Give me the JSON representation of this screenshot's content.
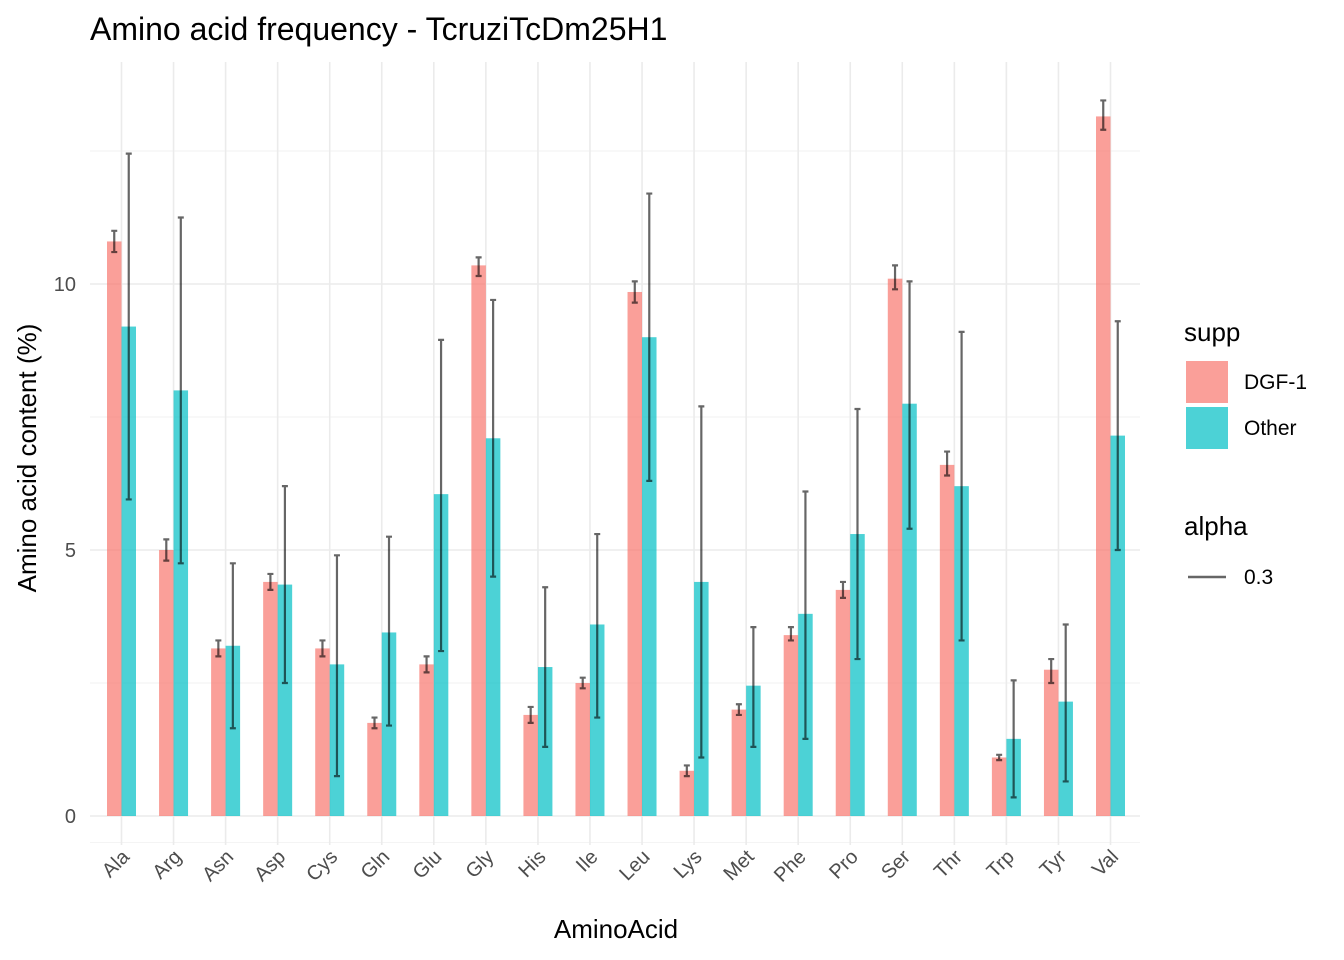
{
  "chart_data": {
    "type": "bar",
    "title": "Amino acid frequency - TcruziTcDm25H1",
    "xlabel": "AminoAcid",
    "ylabel": "Amino acid content (%)",
    "ylim": [
      -0.5,
      14.2
    ],
    "yticks": [
      0,
      5,
      10
    ],
    "grid": true,
    "legend_position": "right",
    "categories": [
      "Ala",
      "Arg",
      "Asn",
      "Asp",
      "Cys",
      "Gln",
      "Glu",
      "Gly",
      "His",
      "Ile",
      "Leu",
      "Lys",
      "Met",
      "Phe",
      "Pro",
      "Ser",
      "Thr",
      "Trp",
      "Tyr",
      "Val"
    ],
    "series": [
      {
        "name": "DGF-1",
        "color": "#F8766D",
        "values": [
          10.8,
          5.0,
          3.15,
          4.4,
          3.15,
          1.75,
          2.85,
          10.35,
          1.9,
          2.5,
          9.85,
          0.85,
          2.0,
          3.4,
          4.25,
          10.1,
          6.6,
          1.1,
          2.75,
          13.15
        ],
        "error_low": [
          10.6,
          4.8,
          3.0,
          4.25,
          3.0,
          1.65,
          2.7,
          10.15,
          1.75,
          2.4,
          9.65,
          0.75,
          1.9,
          3.3,
          4.1,
          9.9,
          6.4,
          1.05,
          2.5,
          12.9
        ],
        "error_high": [
          11.0,
          5.2,
          3.3,
          4.55,
          3.3,
          1.85,
          3.0,
          10.5,
          2.05,
          2.6,
          10.05,
          0.95,
          2.1,
          3.55,
          4.4,
          10.35,
          6.85,
          1.15,
          2.95,
          13.45
        ]
      },
      {
        "name": "Other",
        "color": "#00BFC4",
        "values": [
          9.2,
          8.0,
          3.2,
          4.35,
          2.85,
          3.45,
          6.05,
          7.1,
          2.8,
          3.6,
          9.0,
          4.4,
          2.45,
          3.8,
          5.3,
          7.75,
          6.2,
          1.45,
          2.15,
          7.15
        ],
        "error_low": [
          5.95,
          4.75,
          1.65,
          2.5,
          0.75,
          1.7,
          3.1,
          4.5,
          1.3,
          1.85,
          6.3,
          1.1,
          1.3,
          1.45,
          2.95,
          5.4,
          3.3,
          0.35,
          0.65,
          5.0
        ],
        "error_high": [
          12.45,
          11.25,
          4.75,
          6.2,
          4.9,
          5.25,
          8.95,
          9.7,
          4.3,
          5.3,
          11.7,
          7.7,
          3.55,
          6.1,
          7.65,
          10.05,
          9.1,
          2.55,
          3.6,
          9.3
        ]
      }
    ],
    "legend": {
      "fill_title": "supp",
      "fill_items": [
        "DGF-1",
        "Other"
      ],
      "alpha_title": "alpha",
      "alpha_items": [
        "0.3"
      ]
    }
  }
}
